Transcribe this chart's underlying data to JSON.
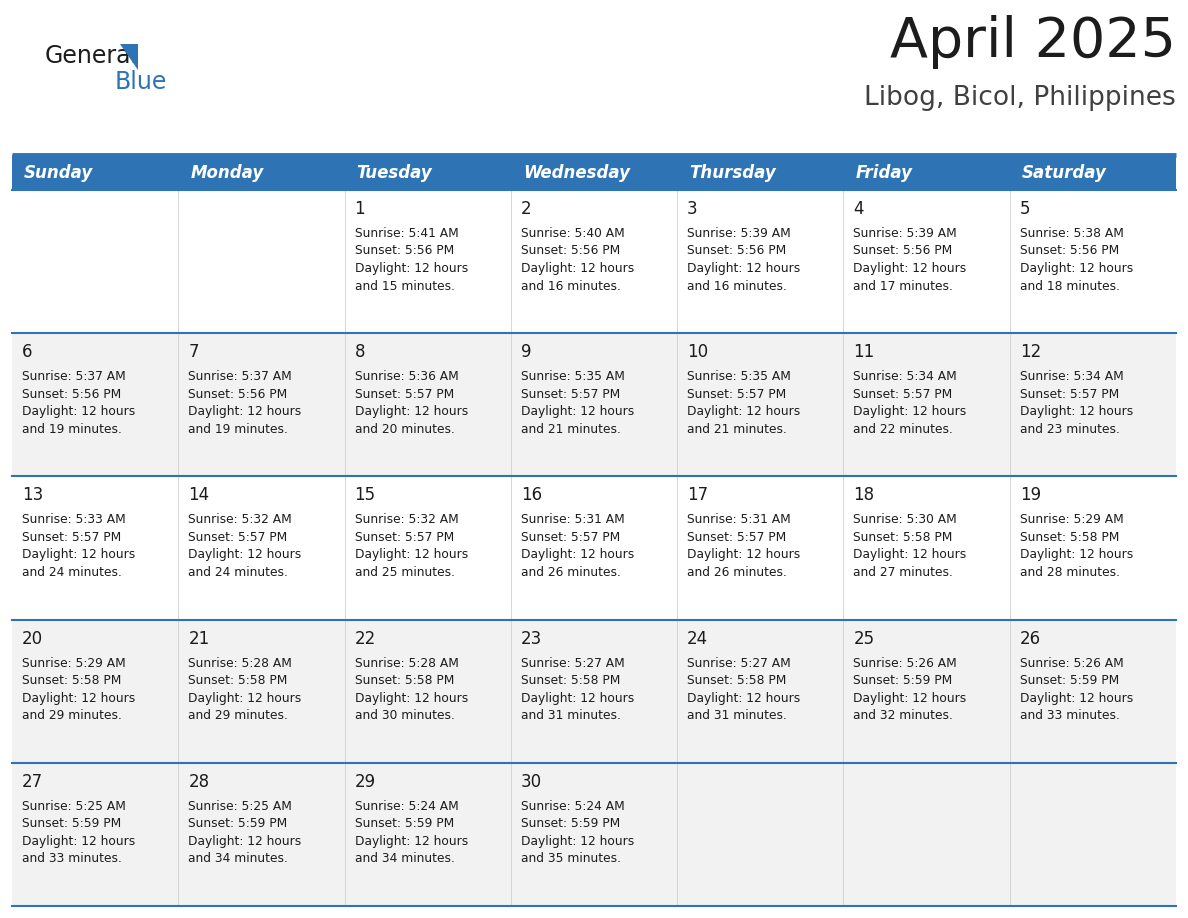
{
  "title": "April 2025",
  "subtitle": "Libog, Bicol, Philippines",
  "header_bg": "#2E74B5",
  "header_text": "#FFFFFF",
  "row_bg_white": "#FFFFFF",
  "row_bg_gray": "#F2F2F2",
  "border_color": "#2E74B5",
  "cell_border_color": "#AAAAAA",
  "day_headers": [
    "Sunday",
    "Monday",
    "Tuesday",
    "Wednesday",
    "Thursday",
    "Friday",
    "Saturday"
  ],
  "calendar_data": [
    [
      {
        "day": "",
        "sunrise": "",
        "sunset": "",
        "daylight_hours": 0,
        "daylight_minutes": 0
      },
      {
        "day": "",
        "sunrise": "",
        "sunset": "",
        "daylight_hours": 0,
        "daylight_minutes": 0
      },
      {
        "day": "1",
        "sunrise": "5:41 AM",
        "sunset": "5:56 PM",
        "daylight_hours": 12,
        "daylight_minutes": 15
      },
      {
        "day": "2",
        "sunrise": "5:40 AM",
        "sunset": "5:56 PM",
        "daylight_hours": 12,
        "daylight_minutes": 16
      },
      {
        "day": "3",
        "sunrise": "5:39 AM",
        "sunset": "5:56 PM",
        "daylight_hours": 12,
        "daylight_minutes": 16
      },
      {
        "day": "4",
        "sunrise": "5:39 AM",
        "sunset": "5:56 PM",
        "daylight_hours": 12,
        "daylight_minutes": 17
      },
      {
        "day": "5",
        "sunrise": "5:38 AM",
        "sunset": "5:56 PM",
        "daylight_hours": 12,
        "daylight_minutes": 18
      }
    ],
    [
      {
        "day": "6",
        "sunrise": "5:37 AM",
        "sunset": "5:56 PM",
        "daylight_hours": 12,
        "daylight_minutes": 19
      },
      {
        "day": "7",
        "sunrise": "5:37 AM",
        "sunset": "5:56 PM",
        "daylight_hours": 12,
        "daylight_minutes": 19
      },
      {
        "day": "8",
        "sunrise": "5:36 AM",
        "sunset": "5:57 PM",
        "daylight_hours": 12,
        "daylight_minutes": 20
      },
      {
        "day": "9",
        "sunrise": "5:35 AM",
        "sunset": "5:57 PM",
        "daylight_hours": 12,
        "daylight_minutes": 21
      },
      {
        "day": "10",
        "sunrise": "5:35 AM",
        "sunset": "5:57 PM",
        "daylight_hours": 12,
        "daylight_minutes": 21
      },
      {
        "day": "11",
        "sunrise": "5:34 AM",
        "sunset": "5:57 PM",
        "daylight_hours": 12,
        "daylight_minutes": 22
      },
      {
        "day": "12",
        "sunrise": "5:34 AM",
        "sunset": "5:57 PM",
        "daylight_hours": 12,
        "daylight_minutes": 23
      }
    ],
    [
      {
        "day": "13",
        "sunrise": "5:33 AM",
        "sunset": "5:57 PM",
        "daylight_hours": 12,
        "daylight_minutes": 24
      },
      {
        "day": "14",
        "sunrise": "5:32 AM",
        "sunset": "5:57 PM",
        "daylight_hours": 12,
        "daylight_minutes": 24
      },
      {
        "day": "15",
        "sunrise": "5:32 AM",
        "sunset": "5:57 PM",
        "daylight_hours": 12,
        "daylight_minutes": 25
      },
      {
        "day": "16",
        "sunrise": "5:31 AM",
        "sunset": "5:57 PM",
        "daylight_hours": 12,
        "daylight_minutes": 26
      },
      {
        "day": "17",
        "sunrise": "5:31 AM",
        "sunset": "5:57 PM",
        "daylight_hours": 12,
        "daylight_minutes": 26
      },
      {
        "day": "18",
        "sunrise": "5:30 AM",
        "sunset": "5:58 PM",
        "daylight_hours": 12,
        "daylight_minutes": 27
      },
      {
        "day": "19",
        "sunrise": "5:29 AM",
        "sunset": "5:58 PM",
        "daylight_hours": 12,
        "daylight_minutes": 28
      }
    ],
    [
      {
        "day": "20",
        "sunrise": "5:29 AM",
        "sunset": "5:58 PM",
        "daylight_hours": 12,
        "daylight_minutes": 29
      },
      {
        "day": "21",
        "sunrise": "5:28 AM",
        "sunset": "5:58 PM",
        "daylight_hours": 12,
        "daylight_minutes": 29
      },
      {
        "day": "22",
        "sunrise": "5:28 AM",
        "sunset": "5:58 PM",
        "daylight_hours": 12,
        "daylight_minutes": 30
      },
      {
        "day": "23",
        "sunrise": "5:27 AM",
        "sunset": "5:58 PM",
        "daylight_hours": 12,
        "daylight_minutes": 31
      },
      {
        "day": "24",
        "sunrise": "5:27 AM",
        "sunset": "5:58 PM",
        "daylight_hours": 12,
        "daylight_minutes": 31
      },
      {
        "day": "25",
        "sunrise": "5:26 AM",
        "sunset": "5:59 PM",
        "daylight_hours": 12,
        "daylight_minutes": 32
      },
      {
        "day": "26",
        "sunrise": "5:26 AM",
        "sunset": "5:59 PM",
        "daylight_hours": 12,
        "daylight_minutes": 33
      }
    ],
    [
      {
        "day": "27",
        "sunrise": "5:25 AM",
        "sunset": "5:59 PM",
        "daylight_hours": 12,
        "daylight_minutes": 33
      },
      {
        "day": "28",
        "sunrise": "5:25 AM",
        "sunset": "5:59 PM",
        "daylight_hours": 12,
        "daylight_minutes": 34
      },
      {
        "day": "29",
        "sunrise": "5:24 AM",
        "sunset": "5:59 PM",
        "daylight_hours": 12,
        "daylight_minutes": 34
      },
      {
        "day": "30",
        "sunrise": "5:24 AM",
        "sunset": "5:59 PM",
        "daylight_hours": 12,
        "daylight_minutes": 35
      },
      {
        "day": "",
        "sunrise": "",
        "sunset": "",
        "daylight_hours": 0,
        "daylight_minutes": 0
      },
      {
        "day": "",
        "sunrise": "",
        "sunset": "",
        "daylight_hours": 0,
        "daylight_minutes": 0
      },
      {
        "day": "",
        "sunrise": "",
        "sunset": "",
        "daylight_hours": 0,
        "daylight_minutes": 0
      }
    ]
  ],
  "title_fontsize": 40,
  "subtitle_fontsize": 19,
  "header_fontsize": 12,
  "day_num_fontsize": 12,
  "cell_text_fontsize": 8.8,
  "logo_general_fontsize": 17,
  "logo_blue_fontsize": 17
}
